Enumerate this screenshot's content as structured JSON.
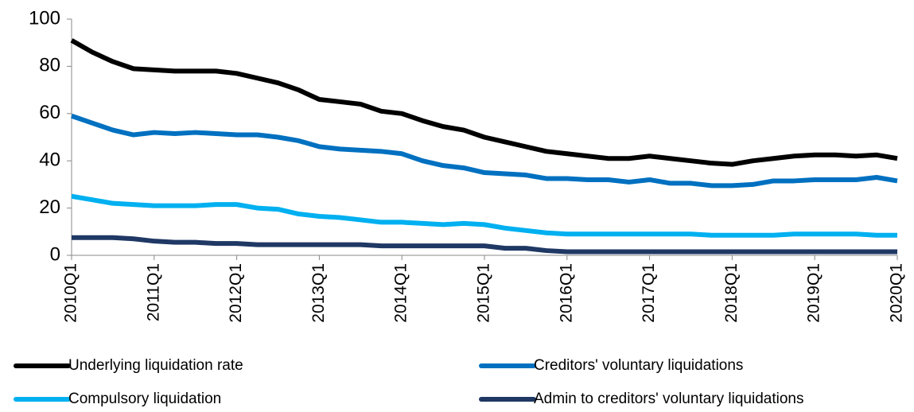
{
  "chart_data": {
    "type": "line",
    "categories": [
      "2010Q1",
      null,
      null,
      null,
      "2011Q1",
      null,
      null,
      null,
      "2012Q1",
      null,
      null,
      null,
      "2013Q1",
      null,
      null,
      null,
      "2014Q1",
      null,
      null,
      null,
      "2015Q1",
      null,
      null,
      null,
      "2016Q1",
      null,
      null,
      null,
      "2017Q1",
      null,
      null,
      null,
      "2018Q1",
      null,
      null,
      null,
      "2019Q1",
      null,
      null,
      null,
      "2020Q1"
    ],
    "series": [
      {
        "name": "Underlying liquidation rate",
        "color": "#000000",
        "values": [
          91,
          86,
          82,
          79,
          78.5,
          78,
          78,
          78,
          77,
          75,
          73,
          70,
          66,
          65,
          64,
          61,
          60,
          57,
          54.5,
          53,
          50,
          48,
          46,
          44,
          43,
          42,
          41,
          41,
          42,
          41,
          40,
          39,
          38.5,
          40,
          41,
          42,
          42.5,
          42.5,
          42,
          42.5,
          41
        ]
      },
      {
        "name": "Creditors' voluntary liquidations",
        "color": "#0070c0",
        "values": [
          59,
          56,
          53,
          51,
          52,
          51.5,
          52,
          51.5,
          51,
          51,
          50,
          48.5,
          46,
          45,
          44.5,
          44,
          43,
          40,
          38,
          37,
          35,
          34.5,
          34,
          32.5,
          32.5,
          32,
          32,
          31,
          32,
          30.5,
          30.5,
          29.5,
          29.5,
          30,
          31.5,
          31.5,
          32,
          32,
          32,
          33,
          31.5
        ]
      },
      {
        "name": "Compulsory liquidation",
        "color": "#00b0f0",
        "values": [
          25,
          23.5,
          22,
          21.5,
          21,
          21,
          21,
          21.5,
          21.5,
          20,
          19.5,
          17.5,
          16.5,
          16,
          15,
          14,
          14,
          13.5,
          13,
          13.5,
          13,
          11.5,
          10.5,
          9.5,
          9,
          9,
          9,
          9,
          9,
          9,
          9,
          8.5,
          8.5,
          8.5,
          8.5,
          9,
          9,
          9,
          9,
          8.5,
          8.5
        ]
      },
      {
        "name": "Admin to creditors' voluntary liquidations",
        "color": "#1f3864",
        "values": [
          7.5,
          7.5,
          7.5,
          7,
          6,
          5.5,
          5.5,
          5,
          5,
          4.5,
          4.5,
          4.5,
          4.5,
          4.5,
          4.5,
          4,
          4,
          4,
          4,
          4,
          4,
          3,
          3,
          2,
          1.5,
          1.5,
          1.5,
          1.5,
          1.5,
          1.5,
          1.5,
          1.5,
          1.5,
          1.5,
          1.5,
          1.5,
          1.5,
          1.5,
          1.5,
          1.5,
          1.5
        ]
      }
    ],
    "ylim": [
      0,
      100
    ],
    "yticks": [
      0,
      20,
      40,
      60,
      80,
      100
    ],
    "grid": false
  }
}
